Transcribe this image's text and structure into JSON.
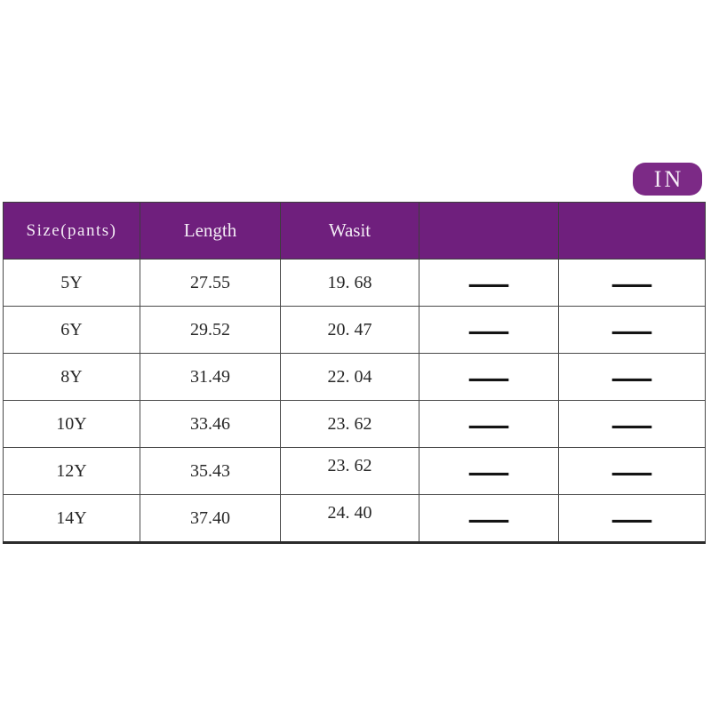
{
  "badge": {
    "label": "IN"
  },
  "colors": {
    "header_purple": "#6f1f7d",
    "badge_purple": "#7c2a86",
    "header_text": "#f3ebf5",
    "body_text": "#272727",
    "grid_border": "#4a4a4a"
  },
  "table": {
    "headers": [
      "Size(pants)",
      "Length",
      "Wasit",
      "",
      ""
    ],
    "rows": [
      {
        "size": "5Y",
        "length": "27.55",
        "wasit": "19. 68",
        "col4": "—",
        "col5": "—"
      },
      {
        "size": "6Y",
        "length": "29.52",
        "wasit": "20. 47",
        "col4": "—",
        "col5": "—"
      },
      {
        "size": "8Y",
        "length": "31.49",
        "wasit": "22. 04",
        "col4": "—",
        "col5": "—"
      },
      {
        "size": "10Y",
        "length": "33.46",
        "wasit": "23. 62",
        "col4": "—",
        "col5": "—"
      },
      {
        "size": "12Y",
        "length": "35.43",
        "wasit": "23. 62",
        "col4": "—",
        "col5": "—"
      },
      {
        "size": "14Y",
        "length": "37.40",
        "wasit": "24. 40",
        "col4": "—",
        "col5": "—"
      }
    ]
  }
}
